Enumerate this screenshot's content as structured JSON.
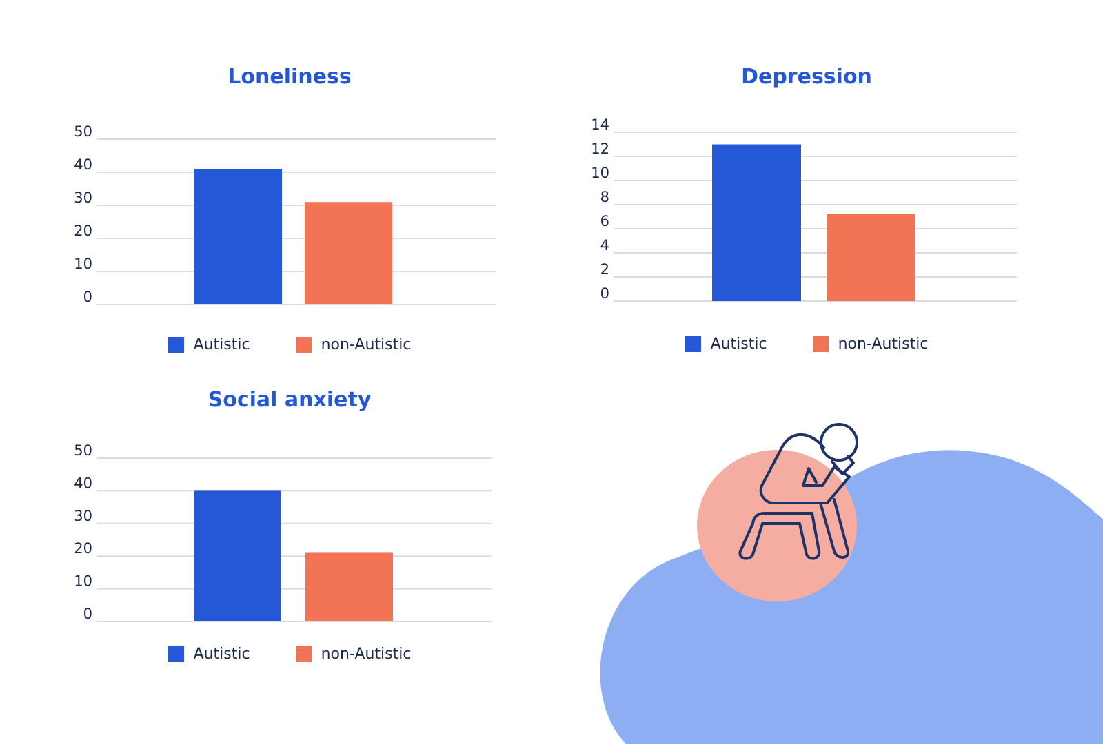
{
  "colors": {
    "autistic": "#2558d6",
    "non_autistic": "#f27455",
    "title": "#2558d6",
    "grid": "#d9dce2",
    "tick": "#1c2a4a",
    "blob_blue": "#8daef2",
    "blob_pink": "#f5ada2",
    "figure_stroke": "#1f3366"
  },
  "legend": {
    "autistic": "Autistic",
    "non_autistic": "non-Autistic"
  },
  "illustration_icon": "sitting-person-head-in-hand-icon",
  "chart_data": [
    {
      "type": "bar",
      "title": "Loneliness",
      "categories": [
        "Autistic",
        "non-Autistic"
      ],
      "values": [
        41,
        31
      ],
      "ylim": [
        0,
        50
      ],
      "yticks": [
        0,
        10,
        20,
        30,
        40,
        50
      ],
      "grid": true,
      "legend_position": "bottom"
    },
    {
      "type": "bar",
      "title": "Depression",
      "categories": [
        "Autistic",
        "non-Autistic"
      ],
      "values": [
        13,
        7.2
      ],
      "ylim": [
        0,
        14
      ],
      "yticks": [
        0,
        2,
        4,
        6,
        8,
        10,
        12,
        14
      ],
      "grid": true,
      "legend_position": "bottom"
    },
    {
      "type": "bar",
      "title": "Social anxiety",
      "categories": [
        "Autistic",
        "non-Autistic"
      ],
      "values": [
        40,
        21
      ],
      "ylim": [
        0,
        50
      ],
      "yticks": [
        0,
        10,
        20,
        30,
        40,
        50
      ],
      "grid": true,
      "legend_position": "bottom"
    }
  ]
}
